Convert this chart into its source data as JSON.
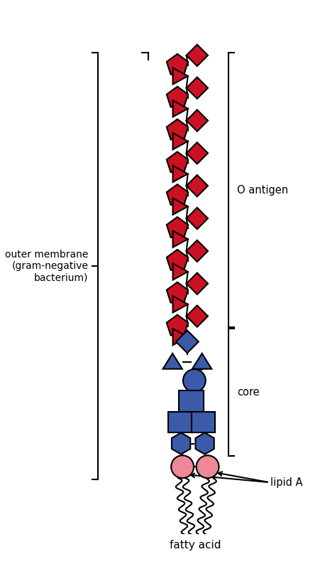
{
  "fig_width": 4.58,
  "fig_height": 8.07,
  "bg_color": "#ffffff",
  "red_color": "#cc1122",
  "blue_color": "#3b5baa",
  "pink_color": "#ee8899",
  "line_color": "#000000",
  "label_fontsize": 10.5,
  "o_antigen_label": "O antigen",
  "core_label": "core",
  "lipid_a_label": "lipid A",
  "fatty_acid_label": "fatty acid",
  "outer_membrane_label": "outer membrane\n(gram-negative\nbacterium)"
}
